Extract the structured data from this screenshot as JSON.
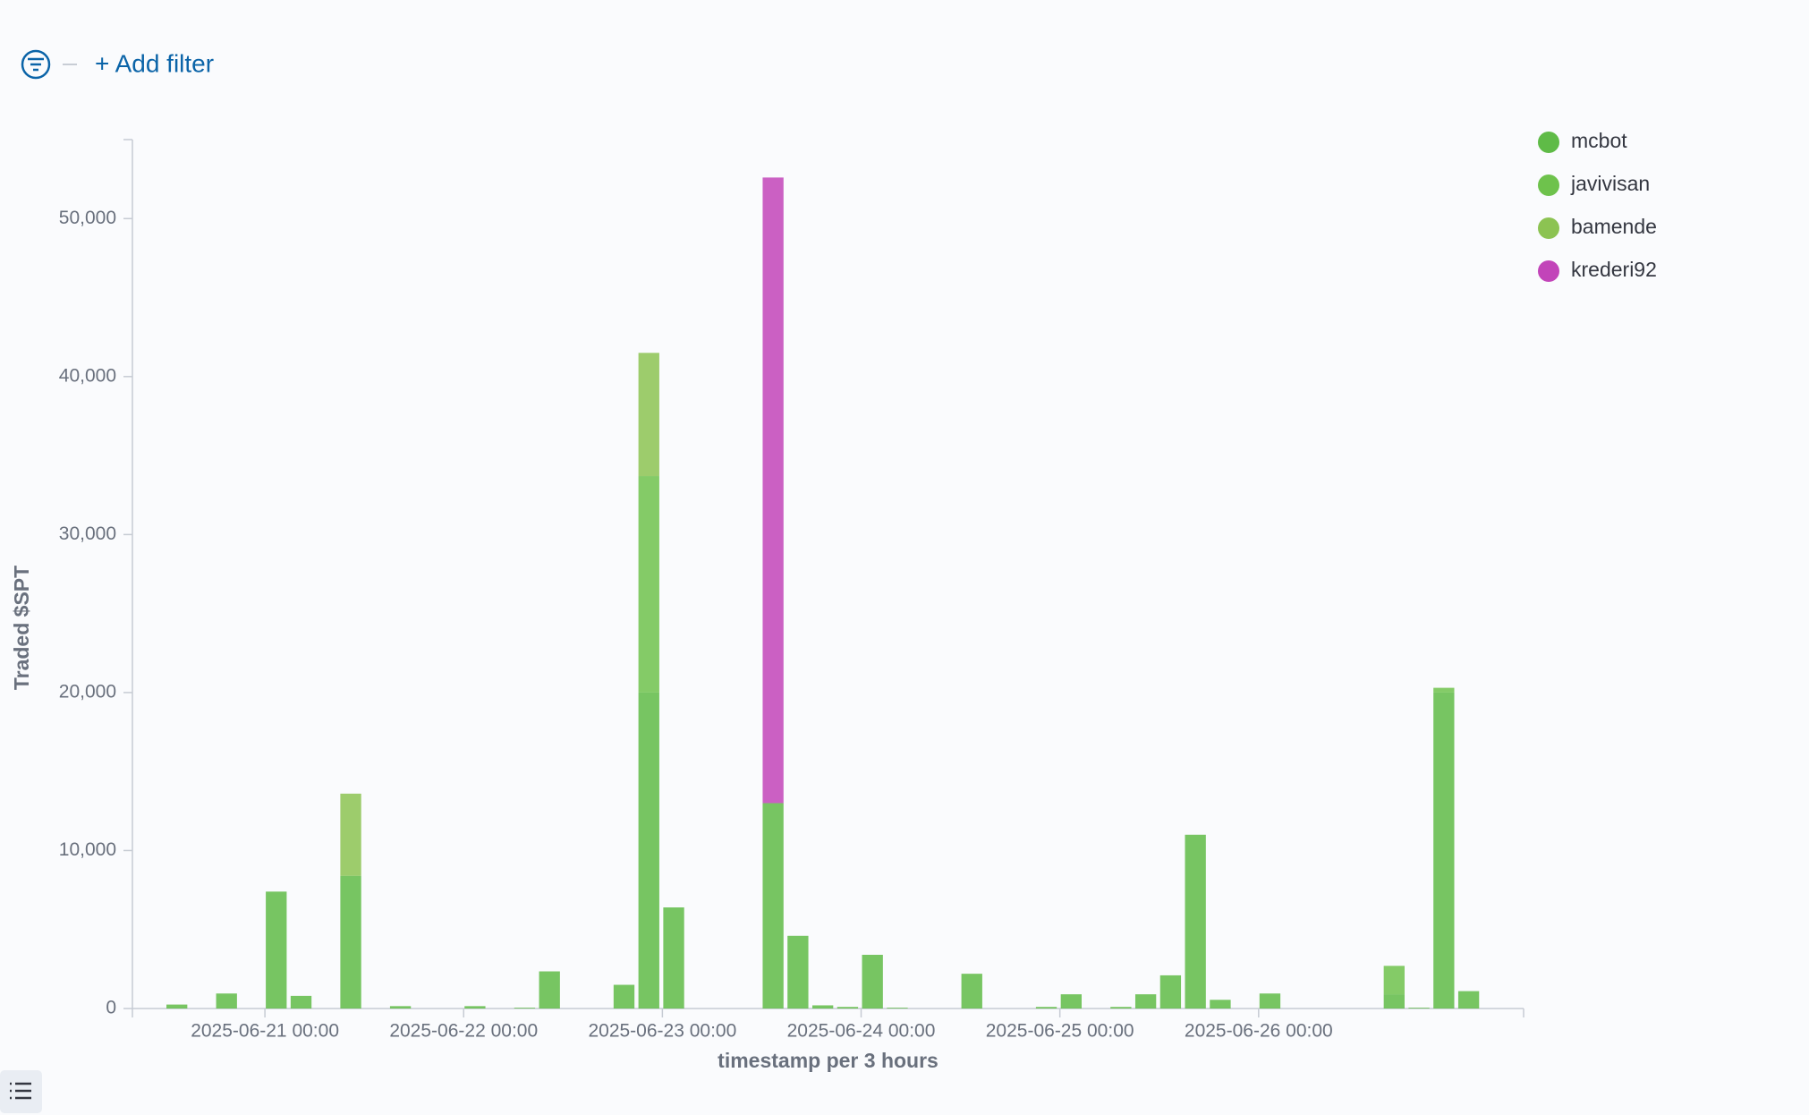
{
  "filter_bar": {
    "add_filter": "+ Add filter"
  },
  "chart_data": {
    "type": "bar",
    "stacked": true,
    "x": [
      "2025-06-20 12:00",
      "2025-06-20 18:00",
      "2025-06-21 00:00",
      "2025-06-21 03:00",
      "2025-06-21 09:00",
      "2025-06-21 15:00",
      "2025-06-22 00:00",
      "2025-06-22 06:00",
      "2025-06-22 09:00",
      "2025-06-22 18:00",
      "2025-06-22 21:00",
      "2025-06-23 00:00",
      "2025-06-23 12:00",
      "2025-06-23 15:00",
      "2025-06-23 18:00",
      "2025-06-23 21:00",
      "2025-06-24 00:00",
      "2025-06-24 03:00",
      "2025-06-24 12:00",
      "2025-06-24 21:00",
      "2025-06-25 00:00",
      "2025-06-25 06:00",
      "2025-06-25 09:00",
      "2025-06-25 12:00",
      "2025-06-25 15:00",
      "2025-06-25 18:00",
      "2025-06-26 00:00",
      "2025-06-26 15:00",
      "2025-06-26 18:00",
      "2025-06-26 21:00",
      "2025-06-27 00:00"
    ],
    "series": [
      {
        "name": "mcbot",
        "color": "#5fbb47",
        "values": [
          250,
          950,
          7400,
          800,
          8400,
          150,
          150,
          50,
          2350,
          1500,
          20000,
          6400,
          13000,
          4600,
          200,
          100,
          3400,
          50,
          2200,
          100,
          900,
          100,
          900,
          2100,
          11000,
          550,
          950,
          900,
          50,
          20000,
          1100
        ]
      },
      {
        "name": "javivisan",
        "color": "#6ec24c",
        "values": [
          null,
          null,
          null,
          null,
          null,
          null,
          null,
          null,
          null,
          null,
          13700,
          null,
          null,
          null,
          null,
          null,
          null,
          null,
          null,
          null,
          null,
          null,
          null,
          null,
          null,
          null,
          null,
          1800,
          null,
          300,
          null
        ]
      },
      {
        "name": "bamende",
        "color": "#8cc352",
        "values": [
          null,
          null,
          null,
          null,
          5200,
          null,
          null,
          null,
          null,
          null,
          7800,
          null,
          null,
          null,
          null,
          null,
          null,
          null,
          null,
          null,
          null,
          null,
          null,
          null,
          null,
          null,
          null,
          null,
          null,
          null,
          null
        ]
      },
      {
        "name": "krederi92",
        "color": "#c244b9",
        "values": [
          null,
          null,
          null,
          null,
          null,
          null,
          null,
          null,
          null,
          null,
          null,
          null,
          39600,
          null,
          null,
          null,
          null,
          null,
          null,
          null,
          null,
          null,
          null,
          null,
          null,
          null,
          null,
          null,
          null,
          null,
          null
        ]
      }
    ],
    "bin_hours": 3,
    "xlim": [
      "2025-06-20 08:00",
      "2025-06-27 08:00"
    ],
    "xticks": [
      "2025-06-21 00:00",
      "2025-06-22 00:00",
      "2025-06-23 00:00",
      "2025-06-24 00:00",
      "2025-06-25 00:00",
      "2025-06-26 00:00"
    ],
    "ylim": [
      0,
      55000
    ],
    "yticks": [
      0,
      {
        "value": 10000,
        "label": "10,000"
      },
      {
        "value": 20000,
        "label": "20,000"
      },
      {
        "value": 30000,
        "label": "30,000"
      },
      {
        "value": 40000,
        "label": "40,000"
      },
      {
        "value": 50000,
        "label": "50,000"
      }
    ],
    "x_label": "timestamp per 3 hours",
    "y_label": "Traded $SPT",
    "legend": "top-right",
    "grid": false
  }
}
